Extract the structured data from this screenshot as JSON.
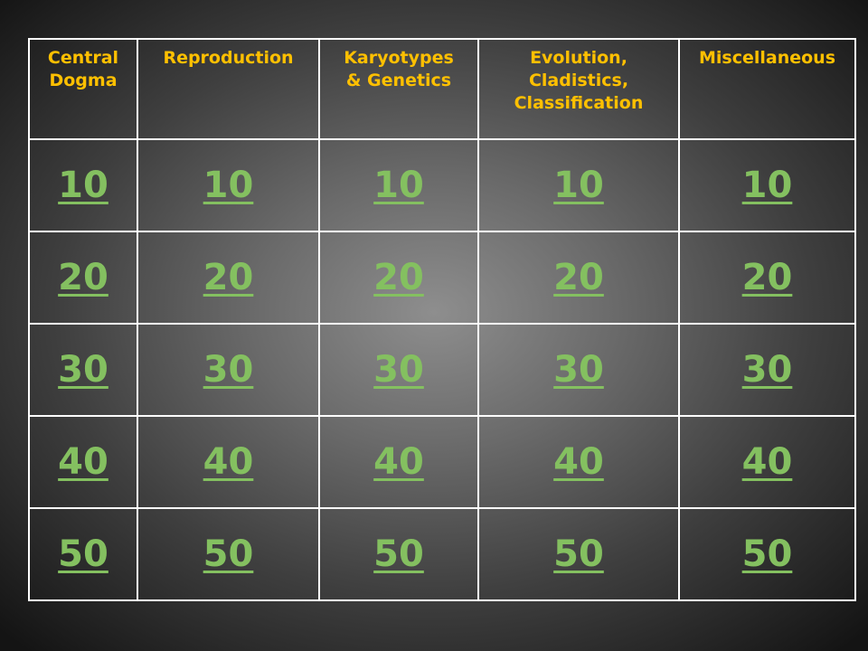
{
  "board": {
    "categories": [
      [
        "Central",
        "Dogma"
      ],
      [
        "Reproduction"
      ],
      [
        "Karyotypes",
        "& Genetics"
      ],
      [
        "Evolution,",
        "Cladistics,",
        "Classification"
      ],
      [
        "Miscellaneous"
      ]
    ],
    "point_values": [
      "10",
      "20",
      "30",
      "40",
      "50"
    ]
  },
  "colors": {
    "header_text": "#ffc000",
    "point_link": "#84c060",
    "grid_lines": "#ffffff"
  }
}
